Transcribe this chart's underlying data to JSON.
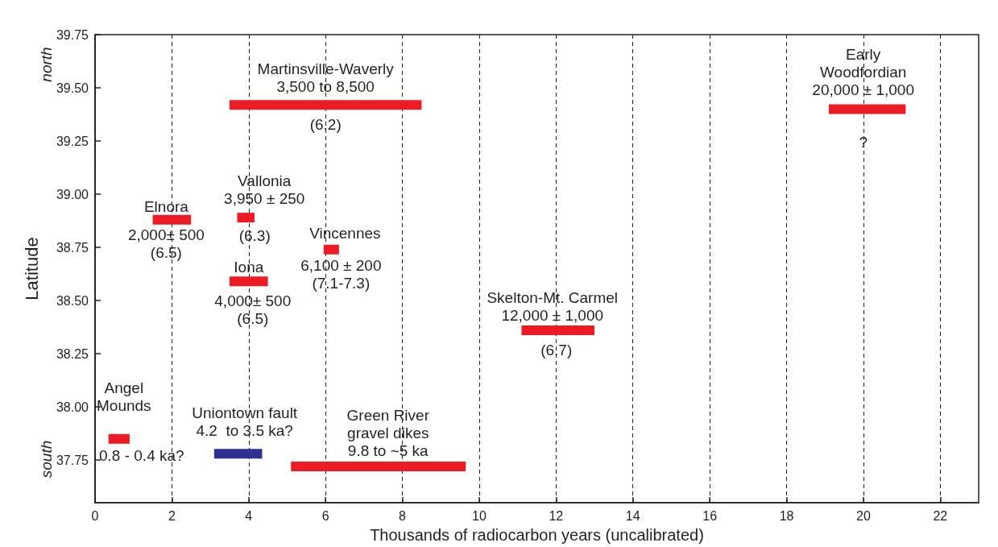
{
  "chart_data": {
    "type": "line",
    "xlabel": "Thousands of radiocarbon years (uncalibrated)",
    "ylabel": "Latitude",
    "xlim": [
      0,
      23
    ],
    "xticks": [
      0,
      2,
      4,
      6,
      8,
      10,
      12,
      14,
      16,
      18,
      20,
      22
    ],
    "ylim": [
      37.55,
      39.75
    ],
    "yticks": [
      {
        "value": 37.75,
        "label": "37.75"
      },
      {
        "value": 38,
        "label": "38.00"
      },
      {
        "value": 38.25,
        "label": "38.25"
      },
      {
        "value": 38.5,
        "label": "38.50"
      },
      {
        "value": 38.75,
        "label": "38.75"
      },
      {
        "value": 39,
        "label": "39.00"
      },
      {
        "value": 39.25,
        "label": "39.25"
      },
      {
        "value": 39.5,
        "label": "39.50"
      },
      {
        "value": 39.75,
        "label": "39.75"
      }
    ],
    "grid": "x",
    "series": [
      {
        "color": "#ed1c24",
        "x": [
          3.5,
          8.5
        ],
        "values": [
          39.42,
          39.42
        ]
      },
      {
        "color": "#ed1c24",
        "x": [
          19.1,
          21.1
        ],
        "values": [
          39.4,
          39.4
        ]
      },
      {
        "color": "#ed1c24",
        "x": [
          1.5,
          2.5
        ],
        "values": [
          38.88,
          38.88
        ]
      },
      {
        "color": "#ed1c24",
        "x": [
          3.7,
          4.15
        ],
        "values": [
          38.89,
          38.89
        ]
      },
      {
        "color": "#ed1c24",
        "x": [
          5.95,
          6.35
        ],
        "values": [
          38.74,
          38.74
        ]
      },
      {
        "color": "#ed1c24",
        "x": [
          3.5,
          4.5
        ],
        "values": [
          38.59,
          38.59
        ]
      },
      {
        "color": "#ed1c24",
        "x": [
          11.1,
          13
        ],
        "values": [
          38.36,
          38.36
        ]
      },
      {
        "color": "#ed1c24",
        "x": [
          0.35,
          0.9
        ],
        "values": [
          37.85,
          37.85
        ]
      },
      {
        "color": "#2e3192",
        "x": [
          3.1,
          4.35
        ],
        "values": [
          37.78,
          37.78
        ]
      },
      {
        "color": "#ed1c24",
        "x": [
          5.1,
          9.65
        ],
        "values": [
          37.72,
          37.72
        ]
      }
    ],
    "annotations": [
      "north",
      "south",
      "Martinsville-Waverly\n3,500 to 8,500",
      "(6.2)",
      "Early\nWoodfordian\n20,000 ± 1,000",
      "?",
      "Elnora",
      "2,000± 500\n(6.5)",
      "Vallonia\n3,950 ± 250",
      "(6.3)",
      "Vincennes",
      "6,100 ± 200\n(7.1-7.3)",
      "Iona",
      "4,000± 500\n(6.5)",
      "Skelton-Mt. Carmel\n12,000 ± 1,000",
      "(6.7)",
      "Angel\nMounds",
      "0.8 - 0.4 ka?",
      "Uniontown fault\n4.2  to 3.5 ka?",
      "Green River\ngravel dikes\n9.8 to ~5 ka"
    ]
  }
}
